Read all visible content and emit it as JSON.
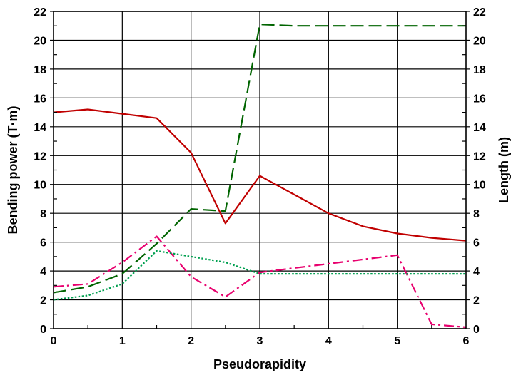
{
  "chart_data": {
    "type": "line",
    "title": "",
    "xlabel": "Pseudorapidity",
    "ylabel": "Bending power (T·m)",
    "y2label": "Length (m)",
    "xlim": [
      0,
      6
    ],
    "ylim": [
      0,
      22
    ],
    "y2lim": [
      0,
      22
    ],
    "xticks": [
      "0",
      "1",
      "2",
      "3",
      "4",
      "5",
      "6"
    ],
    "yticks": [
      "0",
      "2",
      "4",
      "6",
      "8",
      "10",
      "12",
      "14",
      "16",
      "18",
      "20",
      "22"
    ],
    "grid": true,
    "legend": "none",
    "series": [
      {
        "color": "#c00000",
        "style": "solid",
        "axis": "left",
        "x": [
          0,
          0.5,
          1,
          1.5,
          2,
          2.5,
          3,
          3.5,
          4,
          4.5,
          5,
          5.5,
          6
        ],
        "y": [
          15.0,
          15.2,
          14.9,
          14.6,
          12.2,
          7.3,
          10.6,
          9.3,
          8.0,
          7.1,
          6.6,
          6.3,
          6.1
        ]
      },
      {
        "color": "#006400",
        "style": "dashed",
        "axis": "right",
        "x": [
          0,
          0.5,
          1,
          1.5,
          2,
          2.5,
          3,
          3.5,
          4,
          4.5,
          5,
          5.5,
          6
        ],
        "y": [
          2.5,
          2.9,
          3.8,
          5.9,
          8.3,
          8.15,
          21.1,
          21.0,
          21.0,
          21.0,
          21.0,
          21.0,
          21.0
        ]
      },
      {
        "color": "#e8006e",
        "style": "dashdot",
        "axis": "left",
        "x": [
          0,
          0.5,
          1,
          1.5,
          2,
          2.5,
          3,
          3.5,
          4,
          4.5,
          5,
          5.5,
          6
        ],
        "y": [
          2.9,
          3.1,
          4.6,
          6.4,
          3.6,
          2.2,
          3.9,
          4.2,
          4.5,
          4.8,
          5.1,
          0.3,
          0.1
        ]
      },
      {
        "color": "#00a050",
        "style": "dotted",
        "axis": "left",
        "x": [
          0,
          0.5,
          1,
          1.5,
          2,
          2.5,
          3,
          3.5,
          4,
          4.5,
          5,
          5.5,
          6
        ],
        "y": [
          2.0,
          2.3,
          3.1,
          5.4,
          5.0,
          4.6,
          3.8,
          3.8,
          3.8,
          3.8,
          3.8,
          3.8,
          3.8
        ]
      }
    ]
  }
}
